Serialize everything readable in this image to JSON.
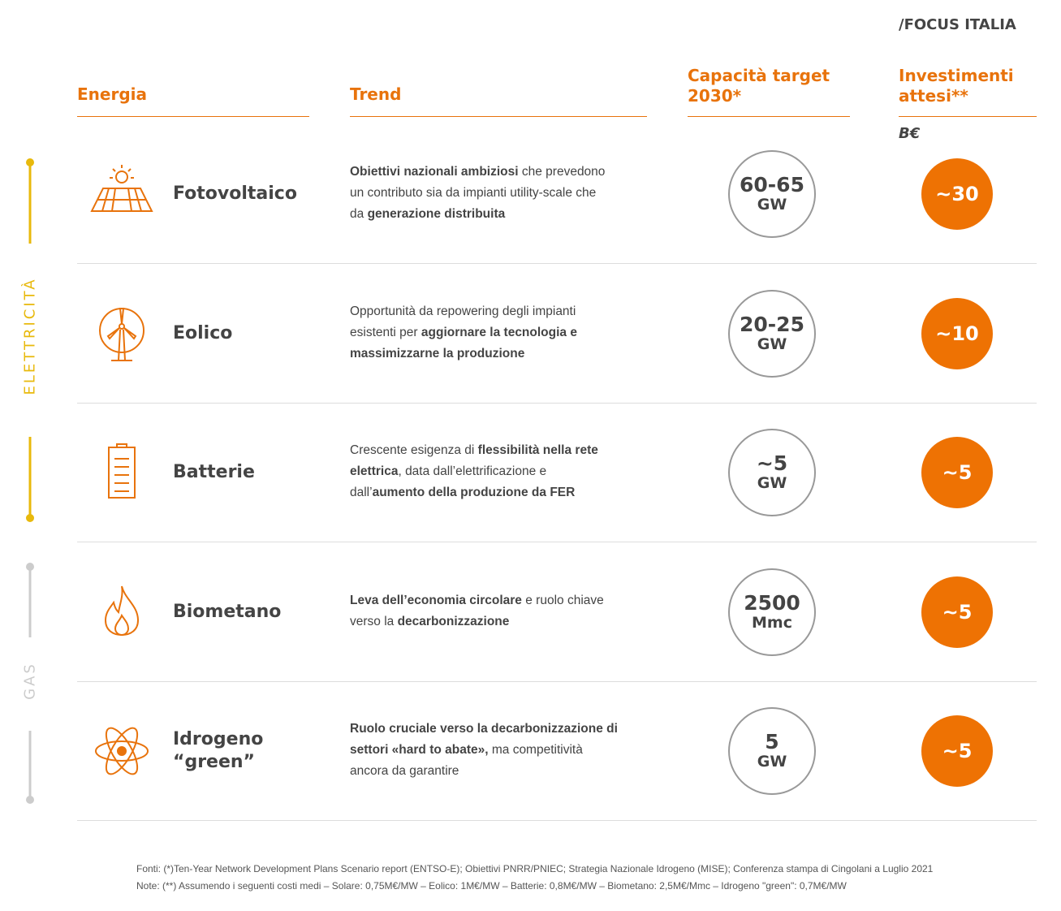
{
  "header": {
    "focus": "/FOCUS ITALIA",
    "columns": [
      "Energia",
      "Trend",
      "Capacità target 2030*",
      "Investimenti attesi**"
    ],
    "unit": "B€"
  },
  "sections": [
    "ELETTRICITÀ",
    "GAS"
  ],
  "rows": [
    {
      "name": "Fotovoltaico",
      "trend": [
        [
          {
            "text": "Obiettivi nazionali ambiziosi",
            "bold": true
          },
          {
            "text": " che prevedono",
            "bold": false
          }
        ],
        [
          {
            "text": "un contributo sia da impianti utility-scale che",
            "bold": false
          }
        ],
        [
          {
            "text": "da ",
            "bold": false
          },
          {
            "text": "generazione distribuita",
            "bold": true
          }
        ]
      ],
      "capacity": "60-65",
      "capacity_unit": "GW",
      "investment": "~30"
    },
    {
      "name": "Eolico",
      "trend": [
        [
          {
            "text": "Opportunità da repowering degli impianti",
            "bold": false
          }
        ],
        [
          {
            "text": "esistenti per ",
            "bold": false
          },
          {
            "text": "aggiornare la tecnologia e",
            "bold": true
          }
        ],
        [
          {
            "text": "massimizzarne la produzione",
            "bold": true
          }
        ]
      ],
      "capacity": "20-25",
      "capacity_unit": "GW",
      "investment": "~10"
    },
    {
      "name": "Batterie",
      "trend": [
        [
          {
            "text": "Crescente esigenza di ",
            "bold": false
          },
          {
            "text": "flessibilità nella rete",
            "bold": true
          }
        ],
        [
          {
            "text": "elettrica",
            "bold": true
          },
          {
            "text": ", data dall’elettrificazione e",
            "bold": false
          }
        ],
        [
          {
            "text": "dall’",
            "bold": false
          },
          {
            "text": "aumento della produzione da FER",
            "bold": true
          }
        ]
      ],
      "capacity": "~5",
      "capacity_unit": "GW",
      "investment": "~5"
    },
    {
      "name": "Biometano",
      "trend": [
        [
          {
            "text": "Leva dell’economia circolare",
            "bold": true
          },
          {
            "text": " e ruolo chiave",
            "bold": false
          }
        ],
        [
          {
            "text": "verso la ",
            "bold": false
          },
          {
            "text": "decarbonizzazione",
            "bold": true
          }
        ]
      ],
      "capacity": "2500",
      "capacity_unit": "Mmc",
      "investment": "~5"
    },
    {
      "name": "Idrogeno “green”",
      "trend": [
        [
          {
            "text": "Ruolo cruciale verso la decarbonizzazione di",
            "bold": true
          }
        ],
        [
          {
            "text": "settori «hard to abate»,",
            "bold": true
          },
          {
            "text": " ma competitività",
            "bold": false
          }
        ],
        [
          {
            "text": "ancora da garantire",
            "bold": false
          }
        ]
      ],
      "capacity": "5",
      "capacity_unit": "GW",
      "investment": "~5"
    }
  ],
  "notes": [
    "Fonti: (*)Ten-Year Network Development Plans Scenario report (ENTSO-E); Obiettivi PNRR/PNIEC; Strategia Nazionale Idrogeno (MISE);  Conferenza stampa di Cingolani a Luglio 2021",
    "Note: (**) Assumendo i seguenti costi medi – Solare: 0,75M€/MW – Eolico: 1M€/MW – Batterie: 0,8M€/MW – Biometano: 2,5M€/Mmc – Idrogeno \"green\": 0,7M€/MW"
  ]
}
